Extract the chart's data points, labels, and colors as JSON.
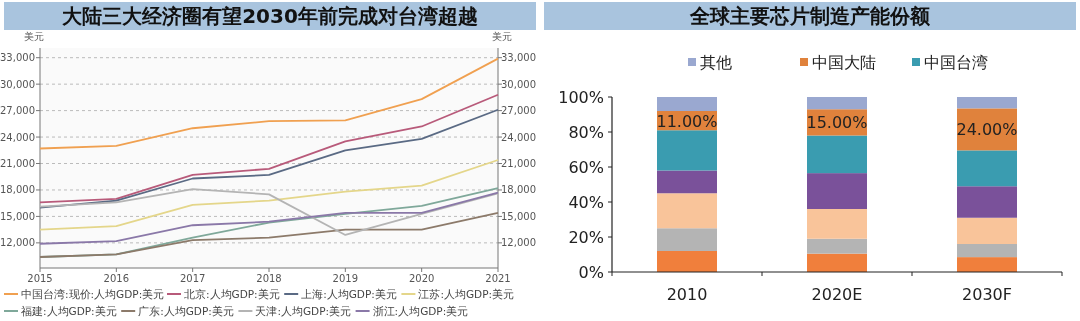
{
  "chart_data": [
    {
      "type": "line",
      "title": "大陆三大经济圈有望2030年前完成对台湾超越",
      "ylabel": "美元",
      "y2label": "美元",
      "x": [
        2015,
        2016,
        2017,
        2018,
        2019,
        2020,
        2021
      ],
      "xlim": [
        2015,
        2021
      ],
      "xticks": [
        2015,
        2016,
        2017,
        2018,
        2019,
        2020,
        2021
      ],
      "ylim": [
        9150,
        34100
      ],
      "yticks": [
        {
          "value": 12000,
          "label": "12,000"
        },
        {
          "value": 15000,
          "label": "15,000"
        },
        {
          "value": 18000,
          "label": "18,000"
        },
        {
          "value": 21000,
          "label": "21,000"
        },
        {
          "value": 24000,
          "label": "24,000"
        },
        {
          "value": 27000,
          "label": "27,000"
        },
        {
          "value": 30000,
          "label": "30,000"
        },
        {
          "value": 33000,
          "label": "33,000"
        }
      ],
      "y2lim": [
        9150,
        34100
      ],
      "y2ticks": [
        {
          "value": 12000,
          "label": "12,000"
        },
        {
          "value": 15000,
          "label": "15,000"
        },
        {
          "value": 18000,
          "label": "18,000"
        },
        {
          "value": 21000,
          "label": "21,000"
        },
        {
          "value": 24000,
          "label": "24,000"
        },
        {
          "value": 27000,
          "label": "27,000"
        },
        {
          "value": 30000,
          "label": "30,000"
        },
        {
          "value": 33000,
          "label": "33,000"
        }
      ],
      "grid": "y",
      "legend": "bottom",
      "marker": "none",
      "line_style": "solid",
      "series": [
        {
          "name": "中国台湾:现价:人均GDP:美元",
          "color": "#f0a050",
          "values": [
            22700,
            23000,
            25000,
            25800,
            25900,
            28300,
            32900
          ]
        },
        {
          "name": "北京:人均GDP:美元",
          "color": "#b85a7a",
          "values": [
            16600,
            17000,
            19700,
            20400,
            23500,
            25200,
            28800
          ]
        },
        {
          "name": "上海:人均GDP:美元",
          "color": "#5a6a84",
          "values": [
            16000,
            16800,
            19300,
            19700,
            22500,
            23800,
            27100
          ]
        },
        {
          "name": "江苏:人均GDP:美元",
          "color": "#e4d68a",
          "values": [
            13500,
            13900,
            16300,
            16800,
            17800,
            18500,
            21400
          ]
        },
        {
          "name": "福建:人均GDP:美元",
          "color": "#7fa89a",
          "values": [
            10400,
            10700,
            12600,
            14300,
            15300,
            16200,
            18200
          ]
        },
        {
          "name": "广东:人均GDP:美元",
          "color": "#8c7a6a",
          "values": [
            10400,
            10700,
            12300,
            12600,
            13500,
            13500,
            15400
          ]
        },
        {
          "name": "天津:人均GDP:美元",
          "color": "#b4b4b4",
          "values": [
            16100,
            16600,
            18100,
            17500,
            12900,
            15300,
            17600
          ]
        },
        {
          "name": "浙江:人均GDP:美元",
          "color": "#8a78a8",
          "values": [
            11900,
            12200,
            14000,
            14400,
            15400,
            15400,
            17700
          ]
        }
      ]
    },
    {
      "type": "bar",
      "title": "全球主要芯片制造产能份额",
      "categories": [
        "2010",
        "2020E",
        "2030F"
      ],
      "stacked": true,
      "ylim": [
        0,
        100
      ],
      "yticks": [
        {
          "value": 0,
          "label": "0%"
        },
        {
          "value": 20,
          "label": "20%"
        },
        {
          "value": 40,
          "label": "40%"
        },
        {
          "value": 60,
          "label": "60%"
        },
        {
          "value": 80,
          "label": "80%"
        },
        {
          "value": 100,
          "label": "100%"
        }
      ],
      "legend": "top",
      "series": [
        {
          "color": "#f07f3c",
          "values": [
            12,
            10.5,
            8.5
          ]
        },
        {
          "color": "#b4b4b4",
          "values": [
            13,
            8.5,
            7.5
          ]
        },
        {
          "color": "#f9c49a",
          "values": [
            20,
            17,
            15
          ]
        },
        {
          "color": "#7a519a",
          "values": [
            13,
            20.5,
            18
          ]
        },
        {
          "name": "中国台湾",
          "color": "#3a9cb0",
          "values": [
            23,
            21.5,
            20.5
          ]
        },
        {
          "name": "中国大陆",
          "color": "#e0823c",
          "values": [
            11,
            15,
            24
          ],
          "value_labels": [
            "11.00%",
            "15.00%",
            "24.00%"
          ]
        },
        {
          "name": "其他",
          "color": "#9aa8d0",
          "values": [
            8,
            7,
            6.5
          ]
        }
      ]
    }
  ]
}
